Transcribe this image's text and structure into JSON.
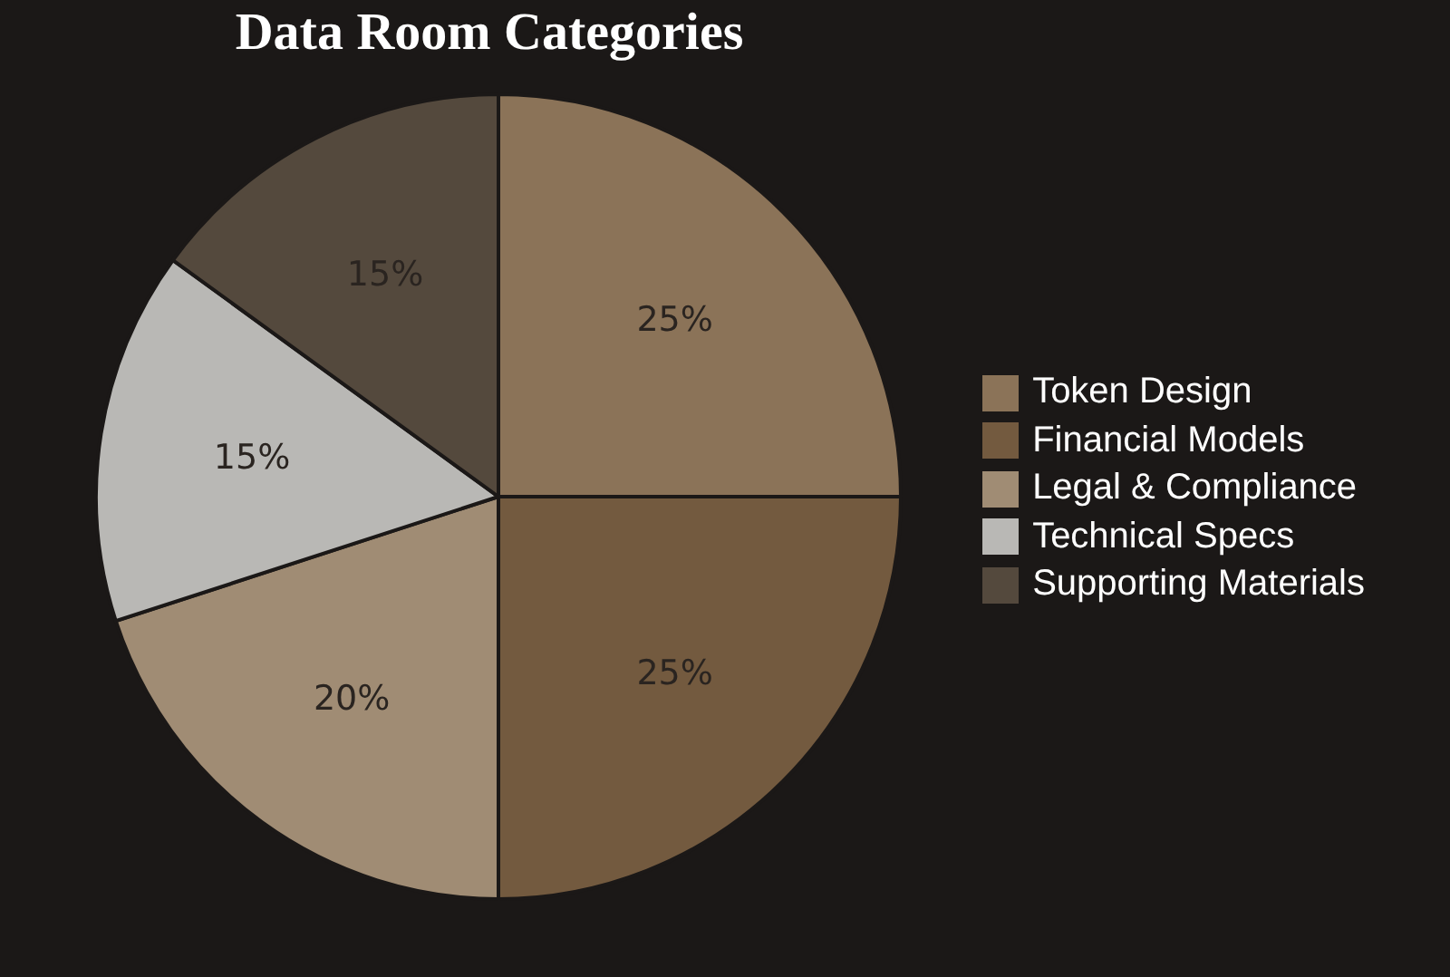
{
  "chart_data": {
    "type": "pie",
    "title": "Data Room Categories",
    "categories": [
      "Token Design",
      "Financial Models",
      "Legal & Compliance",
      "Technical Specs",
      "Supporting Materials"
    ],
    "values": [
      25,
      25,
      20,
      15,
      15
    ],
    "colors": [
      "#8b7358",
      "#735a3f",
      "#a08c74",
      "#b9b8b5",
      "#54493d"
    ],
    "value_labels": [
      "25%",
      "25%",
      "20%",
      "15%",
      "15%"
    ],
    "legend": "right"
  }
}
